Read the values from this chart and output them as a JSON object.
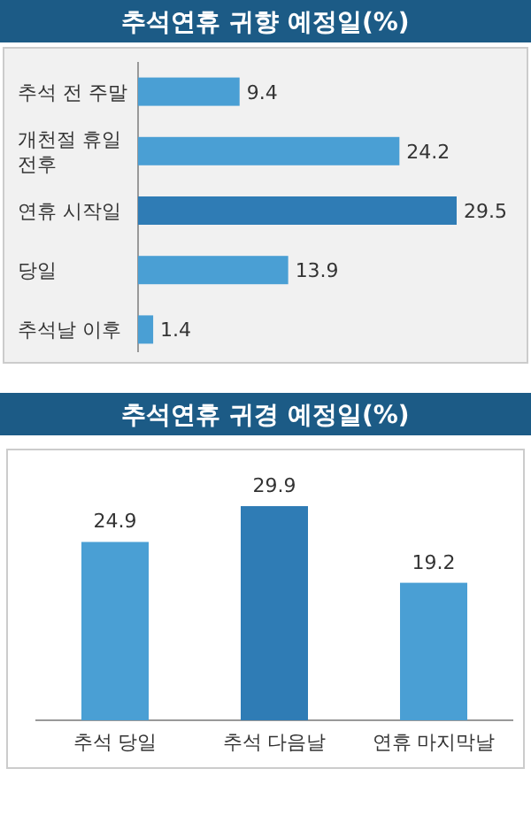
{
  "chart_data": [
    {
      "type": "bar",
      "orientation": "horizontal",
      "title": "추석연휴 귀향 예정일(%)",
      "categories": [
        "추석 전 주말",
        "개천절 휴일 전후",
        "연휴 시작일",
        "당일",
        "추석날 이후"
      ],
      "values": [
        9.4,
        24.2,
        29.5,
        13.9,
        1.4
      ],
      "colors": [
        "#4a9fd4",
        "#4a9fd4",
        "#2f7cb5",
        "#4a9fd4",
        "#4a9fd4"
      ],
      "data_labels": true
    },
    {
      "type": "bar",
      "title": "추석연휴 귀경 예정일(%)",
      "categories": [
        "추석 당일",
        "추석 다음날",
        "연휴 마지막날"
      ],
      "values": [
        24.9,
        29.9,
        19.2
      ],
      "colors": [
        "#4a9fd4",
        "#2f7cb5",
        "#4a9fd4"
      ],
      "data_labels": true
    }
  ]
}
